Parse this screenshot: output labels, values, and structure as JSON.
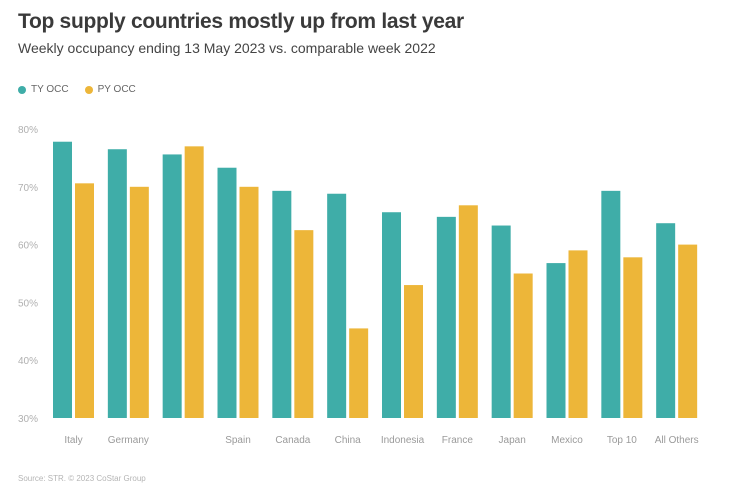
{
  "title": "Top supply countries mostly up from last year",
  "subtitle": "Weekly occupancy ending 13 May 2023 vs. comparable week 2022",
  "source": "Source: STR. © 2023 CoStar Group",
  "colors": {
    "ty": "#3fada8",
    "py": "#edb639"
  },
  "chart_data": {
    "type": "bar",
    "title": "Top supply countries mostly up from last year",
    "subtitle": "Weekly occupancy ending 13 May 2023 vs. comparable week 2022",
    "xlabel": "",
    "ylabel": "",
    "ylim": [
      30,
      80
    ],
    "yticks": [
      30,
      40,
      50,
      60,
      70,
      80
    ],
    "ytick_labels": [
      "30%",
      "40%",
      "50%",
      "60%",
      "70%",
      "80%"
    ],
    "grid": false,
    "legend": "top-left",
    "categories": [
      "Italy",
      "Germany",
      "",
      "Spain",
      "Canada",
      "China",
      "Indonesia",
      "France",
      "Japan",
      "Mexico",
      "Top 10",
      "All Others"
    ],
    "series": [
      {
        "name": "TY OCC",
        "color": "#3fada8",
        "values": [
          77.8,
          76.5,
          75.6,
          73.3,
          69.3,
          68.8,
          65.6,
          64.8,
          63.3,
          56.8,
          69.3,
          63.7
        ]
      },
      {
        "name": "PY OCC",
        "color": "#edb639",
        "values": [
          70.6,
          70.0,
          77.0,
          70.0,
          62.5,
          45.5,
          53.0,
          66.8,
          55.0,
          59.0,
          57.8,
          60.0
        ]
      }
    ]
  }
}
